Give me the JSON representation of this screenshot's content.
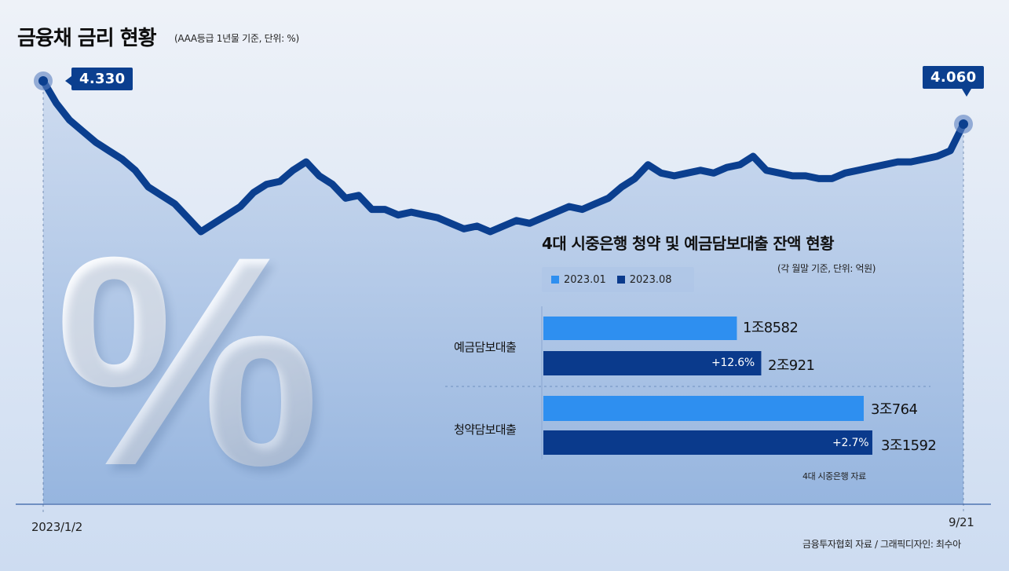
{
  "header": {
    "title": "금융채 금리 현황",
    "subtitle": "(AAA등급 1년물 기준, 단위: %)"
  },
  "callouts": {
    "start_value": "4.330",
    "end_value": "4.060"
  },
  "x_axis": {
    "start_label": "2023/1/2",
    "end_label": "9/21"
  },
  "decor": {
    "percent_glyph": "%"
  },
  "inset": {
    "title": "4대 시중은행 청약 및 예금담보대출 잔액 현황",
    "subtitle": "(각 월말 기준, 단위: 억원)",
    "source": "4대 시중은행 자료"
  },
  "footer": {
    "source": "금융투자협회 자료 / 그래픽디자인: 최수아"
  },
  "colors": {
    "line": "#0b3f8f",
    "series_jan": "#2e8ff0",
    "series_aug": "#0a3a8c",
    "area_top": "#c3d3ea",
    "area_bottom": "#8fb0dc"
  },
  "chart_data": [
    {
      "type": "line",
      "title": "금융채 금리 현황",
      "subtitle": "(AAA등급 1년물 기준, 단위: %)",
      "x_start_label": "2023/1/2",
      "x_end_label": "9/21",
      "ylim": [
        3.4,
        4.35
      ],
      "annotations": [
        {
          "index": 0,
          "label": "4.330"
        },
        {
          "index": "last",
          "label": "4.060"
        }
      ],
      "grid": false,
      "y": [
        4.33,
        4.25,
        4.19,
        4.15,
        4.11,
        4.08,
        4.05,
        4.01,
        3.95,
        3.92,
        3.89,
        3.84,
        3.79,
        3.82,
        3.85,
        3.88,
        3.93,
        3.96,
        3.97,
        4.01,
        4.04,
        3.99,
        3.96,
        3.91,
        3.92,
        3.87,
        3.87,
        3.85,
        3.86,
        3.85,
        3.84,
        3.82,
        3.8,
        3.81,
        3.79,
        3.81,
        3.83,
        3.82,
        3.84,
        3.86,
        3.88,
        3.87,
        3.89,
        3.91,
        3.95,
        3.98,
        4.03,
        4.0,
        3.99,
        4.0,
        4.01,
        4.0,
        4.02,
        4.03,
        4.06,
        4.01,
        4.0,
        3.99,
        3.99,
        3.98,
        3.98,
        4.0,
        4.01,
        4.02,
        4.03,
        4.04,
        4.04,
        4.05,
        4.06,
        4.08,
        4.06
      ]
    },
    {
      "type": "bar",
      "title": "4대 시중은행 청약 및 예금담보대출 잔액 현황",
      "subtitle": "(각 월말 기준, 단위: 억원)",
      "orientation": "horizontal",
      "categories": [
        "예금담보대출",
        "청약담보대출"
      ],
      "series": [
        {
          "name": "2023.01",
          "values": [
            18582,
            30764
          ],
          "labels": [
            "1조8582",
            "3조764"
          ]
        },
        {
          "name": "2023.08",
          "values": [
            20921,
            31592
          ],
          "labels": [
            "2조921",
            "3조1592"
          ]
        }
      ],
      "change_labels": [
        "+12.6%",
        "+2.7%"
      ],
      "xlim": [
        0,
        33000
      ],
      "legend": "top-left",
      "source": "4대 시중은행 자료"
    }
  ]
}
